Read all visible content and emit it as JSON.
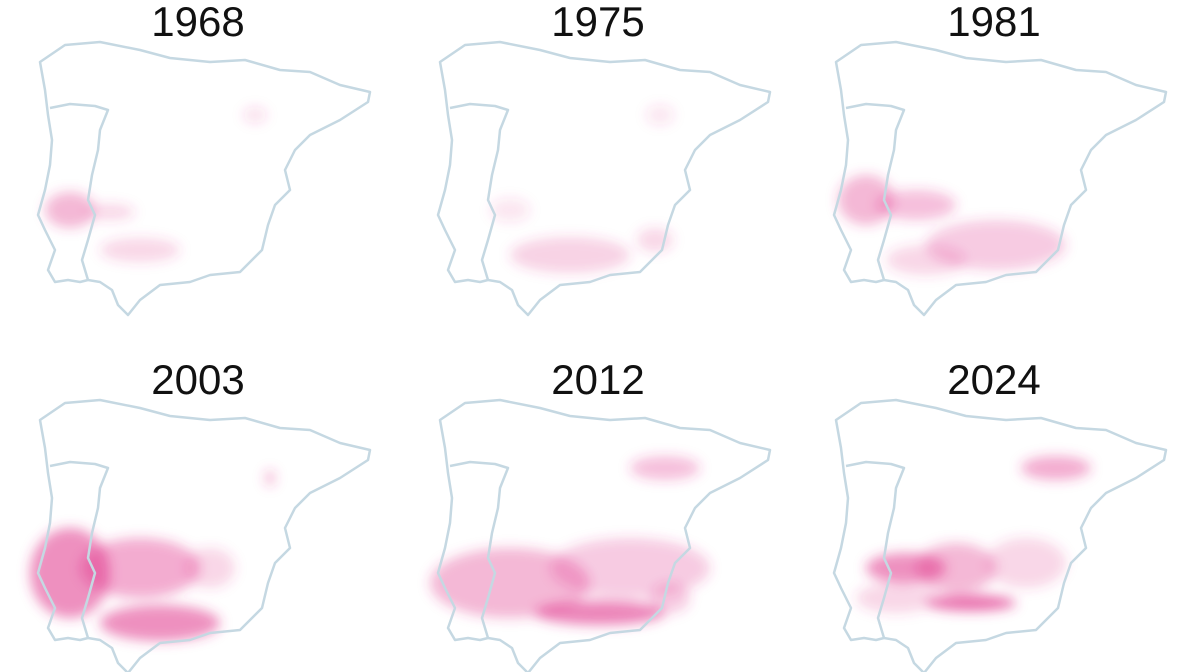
{
  "panels": [
    {
      "title": "1968"
    },
    {
      "title": "1975"
    },
    {
      "title": "1981"
    },
    {
      "title": "2003"
    },
    {
      "title": "2012"
    },
    {
      "title": "2024"
    }
  ]
}
